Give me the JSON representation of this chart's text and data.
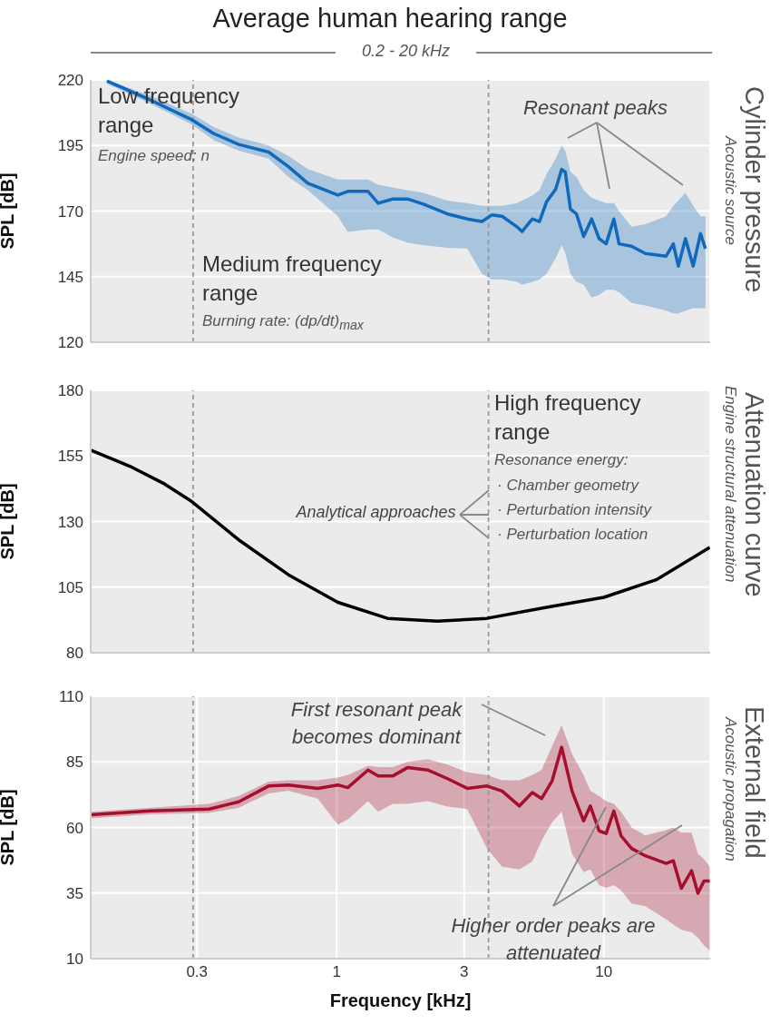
{
  "chart_data": [
    {
      "type": "line",
      "title": "Average human hearing range",
      "subtitle": "0.2 - 20 kHz",
      "ylabel": "SPL [dB]",
      "log": "x",
      "grid": true,
      "tick_labels": "y",
      "xlim": [
        0.12,
        25
      ],
      "xticks": [
        0.3,
        1,
        3,
        10
      ],
      "ylim": [
        120,
        220
      ],
      "yticks": [
        120,
        145,
        170,
        195,
        220
      ],
      "x": [
        0.138,
        0.2,
        0.287,
        0.347,
        0.43,
        0.556,
        0.66,
        0.78,
        1.01,
        1.1,
        1.31,
        1.43,
        1.62,
        1.84,
        2.1,
        2.6,
        3.08,
        3.5,
        3.8,
        4.16,
        4.73,
        4.94,
        5.4,
        5.74,
        6.1,
        6.6,
        6.95,
        7.17,
        7.5,
        7.9,
        8.4,
        9.0,
        9.6,
        10.2,
        10.9,
        11.4,
        12.7,
        14.3,
        17.1,
        18.2,
        19.0,
        20.2,
        21.6,
        23.0,
        24.0
      ],
      "series": [
        {
          "color": "#1169bd",
          "values": [
            219.6,
            212.4,
            204.8,
            199.5,
            195.4,
            192.5,
            186.9,
            180.6,
            176.1,
            177.5,
            177.5,
            173,
            174.6,
            174.6,
            172.7,
            168.9,
            167,
            166,
            168.5,
            168,
            164,
            162.2,
            167,
            166,
            173.5,
            178.3,
            185.9,
            184.9,
            170.7,
            168.9,
            160.3,
            167,
            159.5,
            157.5,
            167,
            157.5,
            156.6,
            153.8,
            152.8,
            157.5,
            149,
            159.5,
            149,
            161.4,
            155.7
          ],
          "upper": [
            220,
            214,
            207,
            202,
            198,
            195,
            191,
            186,
            182,
            182,
            182,
            180,
            179,
            178,
            177,
            174,
            173,
            172,
            172,
            172,
            173,
            174,
            176,
            178,
            184,
            190,
            195,
            193,
            185,
            183,
            178,
            175,
            174,
            173,
            173,
            170,
            164,
            165,
            168,
            172,
            174,
            177,
            172,
            168,
            168
          ],
          "lower": [
            218.5,
            211,
            203,
            197,
            193,
            190,
            183,
            178,
            168,
            162,
            163,
            163,
            160,
            158,
            157,
            156,
            155.7,
            146,
            144,
            144,
            143,
            142,
            143,
            144,
            146,
            152,
            157,
            154,
            146,
            143,
            142,
            137,
            138,
            140,
            140,
            139,
            135,
            134,
            132,
            131,
            131,
            132,
            133,
            133,
            133
          ]
        }
      ],
      "ref_lines": [
        {
          "axis": "x",
          "value": 0.29,
          "color": "#999999",
          "line_style": "dashed"
        },
        {
          "axis": "x",
          "value": 3.7,
          "color": "#999999",
          "line_style": "dashed"
        }
      ],
      "annotations": [
        "Low frequency range",
        "Engine speed: n",
        "Medium frequency range",
        "Burning rate: (dp/dt)$_{max}$",
        "Resonant peaks",
        "Cylinder pressure",
        "Acoustic source"
      ]
    },
    {
      "type": "line",
      "ylabel": "SPL [dB]",
      "log": "x",
      "grid": true,
      "tick_labels": "y",
      "xlim": [
        0.12,
        25
      ],
      "xticks": [
        0.3,
        1,
        3,
        10
      ],
      "ylim": [
        80,
        180
      ],
      "yticks": [
        80,
        105,
        130,
        155,
        180
      ],
      "x": [
        0.12,
        0.168,
        0.227,
        0.287,
        0.43,
        0.66,
        1.01,
        1.55,
        2.38,
        3.65,
        6.1,
        10,
        15.7,
        24.9
      ],
      "series": [
        {
          "color": "#000000",
          "values": [
            157.2,
            151.1,
            144.3,
            137.6,
            123,
            109.7,
            99.2,
            93.1,
            92,
            93.1,
            97.3,
            101.1,
            107.8,
            120.1
          ]
        }
      ],
      "ref_lines": [
        {
          "axis": "x",
          "value": 0.29,
          "color": "#999999",
          "line_style": "dashed"
        },
        {
          "axis": "x",
          "value": 3.7,
          "color": "#999999",
          "line_style": "dashed"
        }
      ],
      "annotations": [
        "High frequency range",
        "Resonance energy:",
        "· Chamber geometry",
        "· Perturbation intensity",
        "· Perturbation location",
        {
          "text": "Analytical approaches",
          "x": 3.7,
          "y": 133
        },
        "Attenuation curve",
        "Engine structural attenuation"
      ]
    },
    {
      "type": "line",
      "xlabel": "Frequency [kHz]",
      "ylabel": "SPL [dB]",
      "log": "x",
      "grid": true,
      "xlim": [
        0.12,
        25
      ],
      "xticks": [
        0.3,
        1,
        3,
        10
      ],
      "ylim": [
        10,
        110
      ],
      "yticks": [
        10,
        35,
        60,
        85,
        110
      ],
      "x": [
        0.12,
        0.2,
        0.333,
        0.43,
        0.556,
        0.66,
        0.85,
        1.01,
        1.1,
        1.31,
        1.43,
        1.62,
        1.84,
        2.19,
        2.6,
        3.08,
        3.65,
        4.16,
        4.83,
        5.4,
        5.85,
        6.4,
        6.95,
        7.6,
        8.4,
        8.9,
        9.6,
        10.2,
        10.9,
        11.6,
        12.7,
        14.3,
        17.1,
        18.2,
        19.5,
        21.3,
        22.5,
        23.7,
        24.9
      ],
      "series": [
        {
          "color": "#a50f2d",
          "values": [
            64.8,
            66.3,
            67,
            69.8,
            75.8,
            76.2,
            74.9,
            76.2,
            75.2,
            81.9,
            79.6,
            79.6,
            82.8,
            81.9,
            78.6,
            74.9,
            75.8,
            73.9,
            68.2,
            73.3,
            71,
            77.7,
            90.6,
            73.9,
            62.5,
            68.2,
            58.7,
            57.7,
            66.3,
            56.8,
            52,
            49.2,
            46.3,
            47.3,
            36.8,
            43.5,
            34.9,
            39.6,
            39.6
          ],
          "upper": [
            66,
            67.5,
            69,
            72,
            77.5,
            78,
            78,
            79,
            80,
            83.5,
            83,
            83,
            85,
            86,
            84,
            81,
            80,
            78,
            78,
            80,
            82,
            91,
            99,
            88,
            80,
            74,
            72,
            70,
            69,
            66,
            60,
            57,
            59,
            60,
            58,
            58,
            50,
            48,
            45
          ],
          "lower": [
            63.5,
            65,
            65.5,
            67.5,
            73,
            74,
            71,
            61,
            63,
            70,
            66,
            69,
            69,
            70,
            68,
            67,
            52,
            45,
            44,
            47,
            55,
            62,
            66,
            50,
            43,
            44,
            38,
            37,
            38,
            36,
            31,
            30,
            25,
            23,
            21,
            20,
            18,
            15,
            13
          ]
        }
      ],
      "ref_lines": [
        {
          "axis": "x",
          "value": 0.29,
          "color": "#999999",
          "line_style": "dashed"
        },
        {
          "axis": "x",
          "value": 3.7,
          "color": "#999999",
          "line_style": "dashed"
        }
      ],
      "annotations": [
        "First resonant peak becomes dominant",
        "Higher order peaks are attenuated",
        "External field",
        "Acoustic propagation"
      ]
    }
  ]
}
